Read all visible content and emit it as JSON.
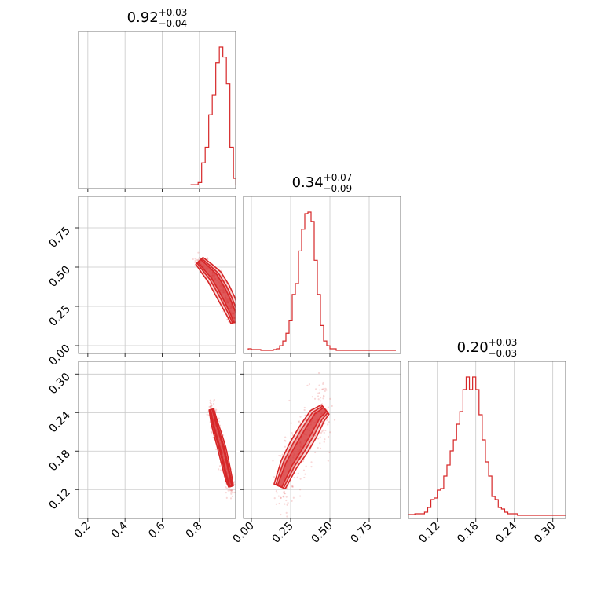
{
  "chart_data": {
    "type": "corner",
    "color": "#d62728",
    "parameters": [
      {
        "index": 0,
        "title": {
          "median": "0.92",
          "plus": "+0.03",
          "minus": "−0.04"
        },
        "range": [
          0.15,
          0.995
        ],
        "ticks": [
          0.2,
          0.4,
          0.6,
          0.8
        ],
        "tick_labels": [
          "0.2",
          "0.4",
          "0.6",
          "0.8"
        ],
        "histogram": {
          "bin_edges": [
            0.755,
            0.774,
            0.793,
            0.812,
            0.831,
            0.85,
            0.869,
            0.888,
            0.907,
            0.926,
            0.945,
            0.964,
            0.983,
            0.995
          ],
          "counts": [
            0.5,
            0.5,
            2,
            16,
            27,
            50,
            64,
            87,
            98,
            91,
            72,
            27,
            5
          ]
        }
      },
      {
        "index": 1,
        "title": {
          "median": "0.34",
          "plus": "+0.07",
          "minus": "−0.09"
        },
        "range": [
          -0.05,
          0.95
        ],
        "ticks": [
          0.0,
          0.25,
          0.5,
          0.75
        ],
        "tick_labels": [
          "0.00",
          "0.25",
          "0.50",
          "0.75"
        ],
        "histogram": {
          "bin_edges": [
            -0.02,
            0.0,
            0.02,
            0.04,
            0.06,
            0.08,
            0.1,
            0.12,
            0.14,
            0.16,
            0.18,
            0.2,
            0.22,
            0.24,
            0.26,
            0.28,
            0.3,
            0.32,
            0.34,
            0.36,
            0.38,
            0.4,
            0.42,
            0.44,
            0.46,
            0.48,
            0.5,
            0.52,
            0.54,
            0.56,
            0.58,
            0.6,
            0.62,
            0.64,
            0.66,
            0.68,
            0.7,
            0.72,
            0.74,
            0.76,
            0.78,
            0.8,
            0.82,
            0.84,
            0.86,
            0.88,
            0.9,
            0.92
          ],
          "counts": [
            1,
            0.5,
            0.5,
            0.5,
            0,
            0,
            0,
            0,
            0.5,
            1,
            3,
            6,
            11,
            19,
            36,
            43,
            64,
            78,
            88,
            89,
            83,
            58,
            36,
            16,
            6,
            3,
            1,
            1,
            0,
            0,
            0,
            0,
            0,
            0,
            0,
            0,
            0,
            0,
            0,
            0,
            0,
            0,
            0,
            0,
            0,
            0,
            0
          ]
        }
      },
      {
        "index": 2,
        "title": {
          "median": "0.20",
          "plus": "+0.03",
          "minus": "−0.03"
        },
        "range": [
          0.075,
          0.32
        ],
        "ticks": [
          0.12,
          0.18,
          0.24,
          0.3
        ],
        "tick_labels": [
          "0.12",
          "0.18",
          "0.24",
          "0.30"
        ],
        "histogram": {
          "bin_edges": [
            0.075,
            0.08,
            0.085,
            0.09,
            0.095,
            0.1,
            0.105,
            0.11,
            0.115,
            0.12,
            0.125,
            0.13,
            0.135,
            0.14,
            0.145,
            0.15,
            0.155,
            0.16,
            0.165,
            0.17,
            0.175,
            0.18,
            0.185,
            0.19,
            0.195,
            0.2,
            0.205,
            0.21,
            0.215,
            0.22,
            0.225,
            0.23,
            0.235,
            0.24,
            0.245,
            0.25,
            0.255,
            0.26,
            0.265,
            0.27,
            0.275,
            0.28,
            0.285,
            0.29,
            0.295,
            0.3,
            0.305,
            0.31,
            0.315,
            0.32
          ],
          "counts": [
            0.5,
            0.5,
            1,
            1,
            1,
            2,
            5,
            10,
            11,
            16,
            17,
            25,
            32,
            41,
            48,
            58,
            66,
            80,
            88,
            80,
            88,
            80,
            64,
            48,
            34,
            25,
            12,
            10,
            5,
            4,
            2,
            1,
            1,
            1,
            0,
            0,
            0,
            0,
            0,
            0,
            0,
            0,
            0,
            0,
            0,
            0,
            0,
            0,
            0
          ]
        }
      }
    ],
    "joint": [
      {
        "row": 1,
        "col": 0,
        "ridge": [
          [
            0.8,
            0.54
          ],
          [
            0.84,
            0.49
          ],
          [
            0.88,
            0.44
          ],
          [
            0.92,
            0.36
          ],
          [
            0.95,
            0.29
          ],
          [
            0.98,
            0.21
          ],
          [
            0.995,
            0.15
          ]
        ],
        "widths": [
          0.018,
          0.03,
          0.045
        ]
      },
      {
        "row": 2,
        "col": 0,
        "ridge": [
          [
            0.865,
            0.245
          ],
          [
            0.88,
            0.225
          ],
          [
            0.9,
            0.205
          ],
          [
            0.92,
            0.185
          ],
          [
            0.94,
            0.16
          ],
          [
            0.96,
            0.135
          ],
          [
            0.97,
            0.125
          ]
        ],
        "widths": [
          0.008,
          0.014,
          0.022
        ]
      },
      {
        "row": 2,
        "col": 1,
        "ridge": [
          [
            0.18,
            0.125
          ],
          [
            0.24,
            0.16
          ],
          [
            0.3,
            0.185
          ],
          [
            0.36,
            0.21
          ],
          [
            0.42,
            0.235
          ],
          [
            0.47,
            0.245
          ]
        ],
        "widths": [
          0.025,
          0.045,
          0.065
        ]
      }
    ]
  }
}
